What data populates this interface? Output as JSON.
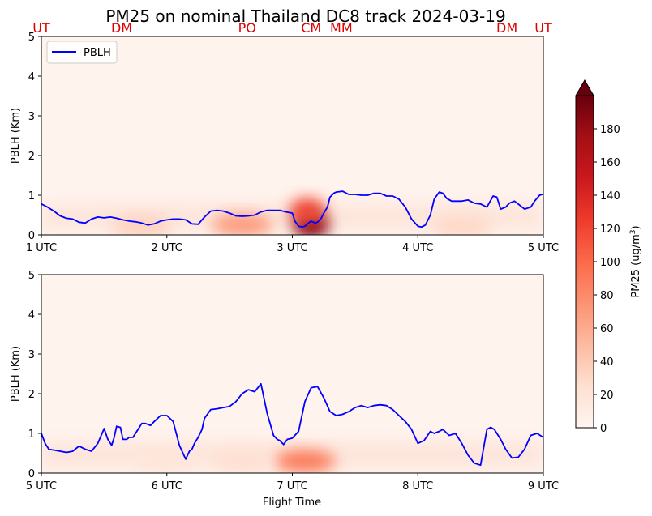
{
  "chart_data": {
    "type": "heatmap",
    "title": "PM25 on nominal Thailand DC8 track 2024-03-19",
    "xlabel": "Flight Time",
    "colorbar": {
      "label": "PM25 (ug/m³)",
      "label_prefix": "PM25 (ug/m",
      "label_exp": "3",
      "label_suffix": ")",
      "ticks": [
        "0",
        "20",
        "40",
        "60",
        "80",
        "100",
        "120",
        "140",
        "160",
        "180"
      ],
      "range": [
        0,
        200
      ],
      "extend": "max",
      "colormap": "Reds"
    },
    "sites": [
      "UT",
      "DM",
      "PO",
      "CM",
      "MM",
      "DM",
      "UT"
    ],
    "site_positions_utc": [
      1.0,
      1.64,
      2.64,
      3.15,
      3.39,
      4.71,
      5.0
    ],
    "panels": [
      {
        "ylabel": "PBLH (Km)",
        "ylim": [
          0,
          5
        ],
        "yticks": [
          "0",
          "1",
          "2",
          "3",
          "4",
          "5"
        ],
        "xlim": [
          1,
          5
        ],
        "xticks": [
          "1 UTC",
          "2 UTC",
          "3 UTC",
          "4 UTC",
          "5 UTC"
        ],
        "legend": {
          "entries": [
            "PBLH"
          ],
          "placement": "upper-left"
        },
        "series": [
          {
            "name": "PBLH",
            "color": "#0000ff",
            "x": [
              1.0,
              1.05,
              1.1,
              1.15,
              1.2,
              1.25,
              1.3,
              1.35,
              1.4,
              1.45,
              1.5,
              1.55,
              1.6,
              1.65,
              1.7,
              1.75,
              1.8,
              1.85,
              1.9,
              1.95,
              2.0,
              2.05,
              2.1,
              2.15,
              2.2,
              2.25,
              2.3,
              2.35,
              2.4,
              2.45,
              2.5,
              2.55,
              2.6,
              2.65,
              2.7,
              2.75,
              2.8,
              2.85,
              2.9,
              2.95,
              3.0,
              3.02,
              3.05,
              3.08,
              3.1,
              3.12,
              3.15,
              3.18,
              3.2,
              3.23,
              3.25,
              3.28,
              3.3,
              3.33,
              3.35,
              3.4,
              3.45,
              3.5,
              3.55,
              3.6,
              3.65,
              3.7,
              3.75,
              3.8,
              3.85,
              3.9,
              3.95,
              4.0,
              4.03,
              4.06,
              4.1,
              4.13,
              4.17,
              4.2,
              4.23,
              4.27,
              4.3,
              4.35,
              4.4,
              4.45,
              4.5,
              4.55,
              4.6,
              4.63,
              4.66,
              4.7,
              4.73,
              4.77,
              4.8,
              4.85,
              4.9,
              4.93,
              4.97,
              5.0
            ],
            "y": [
              0.78,
              0.7,
              0.6,
              0.48,
              0.42,
              0.4,
              0.32,
              0.3,
              0.4,
              0.45,
              0.43,
              0.45,
              0.42,
              0.38,
              0.35,
              0.33,
              0.3,
              0.25,
              0.28,
              0.35,
              0.38,
              0.4,
              0.4,
              0.38,
              0.28,
              0.27,
              0.45,
              0.6,
              0.62,
              0.6,
              0.55,
              0.48,
              0.47,
              0.48,
              0.5,
              0.58,
              0.62,
              0.62,
              0.62,
              0.58,
              0.55,
              0.35,
              0.22,
              0.2,
              0.22,
              0.28,
              0.35,
              0.3,
              0.32,
              0.42,
              0.55,
              0.7,
              0.95,
              1.05,
              1.08,
              1.1,
              1.02,
              1.02,
              1.0,
              1.0,
              1.05,
              1.05,
              0.98,
              0.98,
              0.9,
              0.7,
              0.4,
              0.22,
              0.2,
              0.25,
              0.5,
              0.9,
              1.08,
              1.05,
              0.92,
              0.85,
              0.85,
              0.85,
              0.88,
              0.8,
              0.78,
              0.7,
              0.98,
              0.95,
              0.65,
              0.7,
              0.8,
              0.85,
              0.78,
              0.65,
              0.7,
              0.85,
              1.0,
              1.03
            ]
          }
        ]
      },
      {
        "ylabel": "PBLH (Km)",
        "ylim": [
          0,
          5
        ],
        "yticks": [
          "0",
          "1",
          "2",
          "3",
          "4",
          "5"
        ],
        "xlim": [
          5,
          9
        ],
        "xticks": [
          "5 UTC",
          "6 UTC",
          "7 UTC",
          "8 UTC",
          "9 UTC"
        ],
        "series": [
          {
            "name": "PBLH",
            "color": "#0000ff",
            "x": [
              5.0,
              5.03,
              5.06,
              5.1,
              5.15,
              5.2,
              5.25,
              5.3,
              5.35,
              5.4,
              5.45,
              5.5,
              5.53,
              5.56,
              5.58,
              5.6,
              5.63,
              5.65,
              5.68,
              5.7,
              5.73,
              5.77,
              5.8,
              5.83,
              5.87,
              5.9,
              5.95,
              6.0,
              6.05,
              6.1,
              6.15,
              6.18,
              6.2,
              6.22,
              6.25,
              6.28,
              6.3,
              6.35,
              6.4,
              6.45,
              6.5,
              6.55,
              6.6,
              6.65,
              6.7,
              6.75,
              6.8,
              6.85,
              6.88,
              6.9,
              6.93,
              6.96,
              7.0,
              7.05,
              7.1,
              7.15,
              7.2,
              7.25,
              7.3,
              7.35,
              7.4,
              7.45,
              7.5,
              7.55,
              7.6,
              7.65,
              7.7,
              7.75,
              7.8,
              7.85,
              7.9,
              7.95,
              8.0,
              8.05,
              8.1,
              8.13,
              8.17,
              8.2,
              8.25,
              8.3,
              8.35,
              8.4,
              8.45,
              8.5,
              8.55,
              8.58,
              8.61,
              8.63,
              8.66,
              8.7,
              8.75,
              8.8,
              8.85,
              8.9,
              8.95,
              9.0
            ],
            "y": [
              1.0,
              0.75,
              0.6,
              0.58,
              0.55,
              0.52,
              0.55,
              0.68,
              0.6,
              0.55,
              0.75,
              1.12,
              0.85,
              0.7,
              0.9,
              1.18,
              1.15,
              0.85,
              0.85,
              0.9,
              0.9,
              1.1,
              1.25,
              1.25,
              1.2,
              1.3,
              1.45,
              1.45,
              1.3,
              0.7,
              0.35,
              0.55,
              0.6,
              0.75,
              0.9,
              1.1,
              1.38,
              1.6,
              1.62,
              1.65,
              1.68,
              1.8,
              2.0,
              2.1,
              2.05,
              2.25,
              1.5,
              0.95,
              0.85,
              0.82,
              0.72,
              0.85,
              0.88,
              1.05,
              1.8,
              2.15,
              2.18,
              1.9,
              1.55,
              1.45,
              1.48,
              1.55,
              1.65,
              1.7,
              1.65,
              1.7,
              1.72,
              1.7,
              1.6,
              1.45,
              1.3,
              1.1,
              0.75,
              0.82,
              1.05,
              1.0,
              1.05,
              1.1,
              0.95,
              1.0,
              0.75,
              0.45,
              0.25,
              0.2,
              1.1,
              1.15,
              1.1,
              1.0,
              0.85,
              0.6,
              0.38,
              0.4,
              0.6,
              0.95,
              1.0,
              0.9
            ]
          }
        ]
      }
    ],
    "pm25_hotspots": [
      {
        "panel": 0,
        "t": 3.15,
        "h": 0.25,
        "value": 190
      },
      {
        "panel": 0,
        "t": 3.12,
        "h": 0.6,
        "value": 120
      },
      {
        "panel": 0,
        "t": 2.6,
        "h": 0.25,
        "value": 70
      },
      {
        "panel": 0,
        "t": 1.8,
        "h": 0.2,
        "value": 35
      },
      {
        "panel": 0,
        "t": 4.35,
        "h": 0.2,
        "value": 30
      },
      {
        "panel": 1,
        "t": 7.1,
        "h": 0.3,
        "value": 90
      },
      {
        "panel": 1,
        "t": 6.6,
        "h": 0.3,
        "value": 25
      },
      {
        "panel": 1,
        "t": 6.0,
        "h": 0.3,
        "value": 18
      }
    ]
  }
}
